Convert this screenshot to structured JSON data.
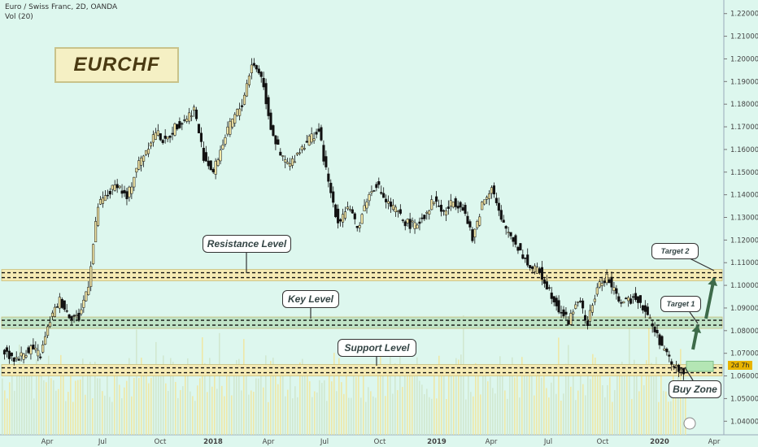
{
  "header": {
    "symbol_line": "Euro / Swiss Franc, 2D, OANDA",
    "volume_line": "Vol (20)"
  },
  "chart_title": "EURCHF",
  "callouts": {
    "resistance": "Resistance Level",
    "key": "Key Level",
    "support": "Support Level",
    "target1": "Target 1",
    "target2": "Target 2",
    "buy_zone": "Buy Zone"
  },
  "price_tag": "2d 7h",
  "colors": {
    "background": "#ddf7ee",
    "up_candle": "#f2e6a6",
    "down_candle": "#111111",
    "resistance_band": "#f5eab4",
    "key_band": "#bfe3c6",
    "support_band": "#f5eab4",
    "buy_zone_box": "#b4e6b4",
    "volume_bar": "#f0e6a0",
    "arrow": "#3d6b4a"
  },
  "chart_data": {
    "type": "candlestick",
    "instrument": "EURCHF",
    "timeframe": "2D",
    "y_axis": {
      "ticks": [
        "1.22000",
        "1.21000",
        "1.20000",
        "1.19000",
        "1.18000",
        "1.17000",
        "1.16000",
        "1.15000",
        "1.14000",
        "1.13000",
        "1.12000",
        "1.11000",
        "1.10000",
        "1.09000",
        "1.08000",
        "1.07000",
        "1.06000",
        "1.05000",
        "1.04000"
      ],
      "ylim": [
        1.034,
        1.226
      ]
    },
    "x_axis": {
      "ticks": [
        {
          "label": "Apr",
          "bold": false
        },
        {
          "label": "Jul",
          "bold": false
        },
        {
          "label": "Oct",
          "bold": false
        },
        {
          "label": "2018",
          "bold": true
        },
        {
          "label": "Apr",
          "bold": false
        },
        {
          "label": "Jul",
          "bold": false
        },
        {
          "label": "Oct",
          "bold": false
        },
        {
          "label": "2019",
          "bold": true
        },
        {
          "label": "Apr",
          "bold": false
        },
        {
          "label": "Jul",
          "bold": false
        },
        {
          "label": "Oct",
          "bold": false
        },
        {
          "label": "2020",
          "bold": true
        },
        {
          "label": "Apr",
          "bold": false
        }
      ]
    },
    "levels": {
      "resistance": 1.1045,
      "key": 1.0835,
      "support": 1.0625
    },
    "targets": {
      "target1": 1.0835,
      "target2": 1.1045
    },
    "close_path": [
      [
        "2017-01",
        1.073
      ],
      [
        "2017-02",
        1.067
      ],
      [
        "2017-03",
        1.069
      ],
      [
        "2017-04",
        1.0725
      ],
      [
        "2017-05",
        1.069
      ],
      [
        "2017-05b",
        1.0845
      ],
      [
        "2017-06",
        1.0935
      ],
      [
        "2017-06b",
        1.087
      ],
      [
        "2017-07",
        1.0855
      ],
      [
        "2017-07b",
        1.101
      ],
      [
        "2017-08",
        1.135
      ],
      [
        "2017-08b",
        1.14
      ],
      [
        "2017-09",
        1.145
      ],
      [
        "2017-09b",
        1.138
      ],
      [
        "2017-10",
        1.152
      ],
      [
        "2017-10b",
        1.16
      ],
      [
        "2017-11",
        1.168
      ],
      [
        "2017-11b",
        1.163
      ],
      [
        "2017-12",
        1.17
      ],
      [
        "2017-12b",
        1.173
      ],
      [
        "2018-01",
        1.178
      ],
      [
        "2018-01b",
        1.157
      ],
      [
        "2018-02",
        1.15
      ],
      [
        "2018-02b",
        1.163
      ],
      [
        "2018-03",
        1.173
      ],
      [
        "2018-03b",
        1.18
      ],
      [
        "2018-04",
        1.198
      ],
      [
        "2018-04b",
        1.193
      ],
      [
        "2018-05",
        1.17
      ],
      [
        "2018-05b",
        1.157
      ],
      [
        "2018-06",
        1.153
      ],
      [
        "2018-06b",
        1.16
      ],
      [
        "2018-07",
        1.165
      ],
      [
        "2018-07b",
        1.168
      ],
      [
        "2018-08",
        1.145
      ],
      [
        "2018-08b",
        1.128
      ],
      [
        "2018-09",
        1.135
      ],
      [
        "2018-09b",
        1.125
      ],
      [
        "2018-10",
        1.138
      ],
      [
        "2018-10b",
        1.145
      ],
      [
        "2018-11",
        1.137
      ],
      [
        "2018-11b",
        1.133
      ],
      [
        "2018-12",
        1.128
      ],
      [
        "2018-12b",
        1.126
      ],
      [
        "2019-01",
        1.131
      ],
      [
        "2019-01b",
        1.138
      ],
      [
        "2019-02",
        1.132
      ],
      [
        "2019-02b",
        1.137
      ],
      [
        "2019-03",
        1.135
      ],
      [
        "2019-03b",
        1.12
      ],
      [
        "2019-04",
        1.136
      ],
      [
        "2019-04b",
        1.144
      ],
      [
        "2019-05",
        1.128
      ],
      [
        "2019-05b",
        1.122
      ],
      [
        "2019-06",
        1.115
      ],
      [
        "2019-06b",
        1.108
      ],
      [
        "2019-07",
        1.106
      ],
      [
        "2019-07b",
        1.098
      ],
      [
        "2019-08",
        1.09
      ],
      [
        "2019-08b",
        1.084
      ],
      [
        "2019-09",
        1.094
      ],
      [
        "2019-09b",
        1.083
      ],
      [
        "2019-10",
        1.099
      ],
      [
        "2019-10b",
        1.104
      ],
      [
        "2019-11",
        1.095
      ],
      [
        "2019-11b",
        1.092
      ],
      [
        "2019-12",
        1.0955
      ],
      [
        "2019-12b",
        1.089
      ],
      [
        "2020-01",
        1.08
      ],
      [
        "2020-01b",
        1.071
      ],
      [
        "2020-02",
        1.064
      ],
      [
        "2020-02b",
        1.062
      ]
    ],
    "buy_zone": {
      "from": 1.062,
      "to": 1.0665
    },
    "volume": "relative bar heights along bottom"
  }
}
